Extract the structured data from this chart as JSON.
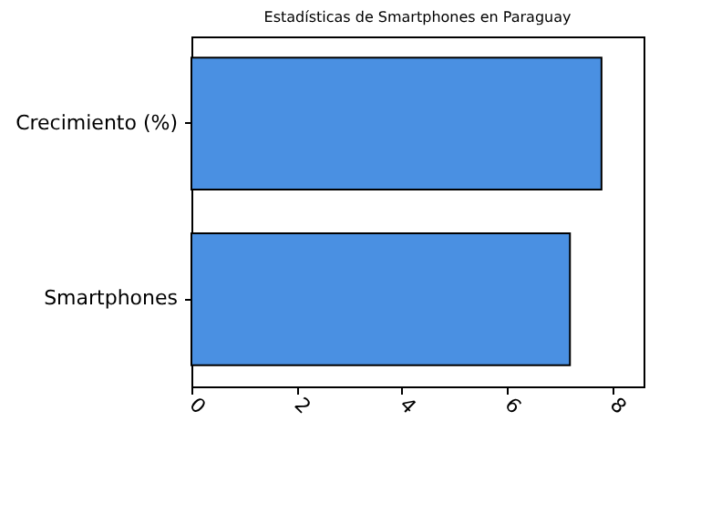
{
  "chart_data": {
    "type": "bar",
    "orientation": "horizontal",
    "title": "Estadísticas de Smartphones en Paraguay",
    "categories": [
      "Crecimiento (%)",
      "Smartphones"
    ],
    "values": [
      7.8,
      7.2
    ],
    "color": "#4a90e2",
    "xlim": [
      0,
      8.6
    ],
    "xticks": [
      0,
      2,
      4,
      6,
      8
    ],
    "grid": false
  }
}
